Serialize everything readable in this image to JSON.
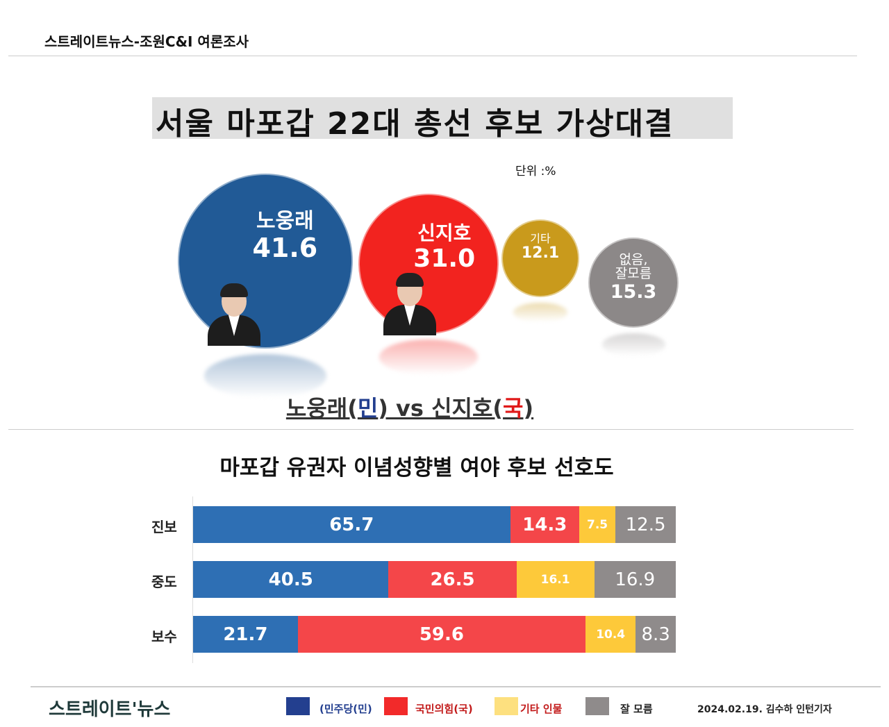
{
  "header": {
    "source": "스트레이트뉴스-조원C&I 여론조사"
  },
  "chart_data": [
    {
      "type": "bubble",
      "title": "서울 마포갑 22대 총선 후보 가상대결",
      "unit": "단위  :%",
      "items": [
        {
          "label": "노웅래",
          "value": 41.6,
          "value_text": "41.6",
          "color": "#215a96"
        },
        {
          "label": "신지호",
          "value": 31.0,
          "value_text": "31.0",
          "color": "#f2231f"
        },
        {
          "label": "기타",
          "value": 12.1,
          "value_text": "12.1",
          "color": "#c99a1c"
        },
        {
          "label": "없음,\n잘모름",
          "value": 15.3,
          "value_text": "15.3",
          "color": "#8c8888"
        }
      ],
      "caption": {
        "part1": "노웅래(",
        "party1": "민",
        "part2": ") vs 신지호(",
        "party2": "국",
        "part3": ")"
      }
    },
    {
      "type": "stacked-bar",
      "title": "마포갑 유권자 이념성향별 여야 후보 선호도",
      "xlim": [
        0,
        100
      ],
      "categories": [
        "진보",
        "중도",
        "보수"
      ],
      "series": [
        {
          "name": "(민주당(민)",
          "values": [
            65.7,
            40.5,
            21.7
          ],
          "color": "#2e6fb4"
        },
        {
          "name": "국민의힘(국)",
          "values": [
            14.3,
            26.5,
            59.6
          ],
          "color": "#f44649"
        },
        {
          "name": "기타 인물",
          "values": [
            7.5,
            16.1,
            10.4
          ],
          "color": "#fdc93a"
        },
        {
          "name": "잘 모름",
          "values": [
            12.5,
            16.9,
            8.3
          ],
          "color": "#8f8b8b"
        }
      ]
    }
  ],
  "footer": {
    "logo": "스트레이트'뉴스",
    "legend": [
      {
        "label": "(민주당(민)",
        "swatch": "#233f8f",
        "text_color": "#233f8f"
      },
      {
        "label": "국민의힘(국)",
        "swatch": "#f22a2a",
        "text_color": "#c21a1a"
      },
      {
        "label": "기타 인물",
        "swatch": "#fde07f",
        "text_color": "#c21a1a"
      },
      {
        "label": "잘 모름",
        "swatch": "#8f8b8b",
        "text_color": "#222"
      }
    ],
    "byline": "2024.02.19. 김수하 인턴기자"
  }
}
